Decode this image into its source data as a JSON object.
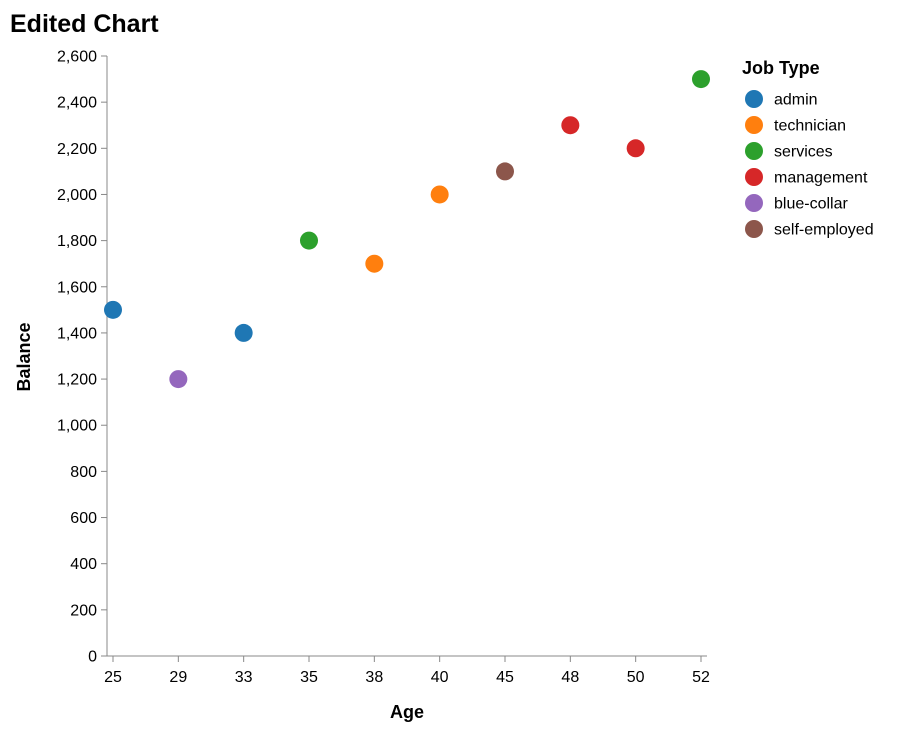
{
  "chart_data": {
    "type": "scatter",
    "title": "Edited Chart",
    "xlabel": "Age",
    "ylabel": "Balance",
    "x_ticks": [
      "25",
      "29",
      "33",
      "35",
      "38",
      "40",
      "45",
      "48",
      "50",
      "52"
    ],
    "y_ticks": [
      0,
      200,
      400,
      600,
      800,
      1000,
      1200,
      1400,
      1600,
      1800,
      2000,
      2200,
      2400,
      2600
    ],
    "ylim": [
      0,
      2600
    ],
    "grid": false,
    "legend": {
      "title": "Job Type",
      "placement": "right",
      "entries": [
        {
          "name": "admin",
          "color": "#1f77b4"
        },
        {
          "name": "technician",
          "color": "#ff7f0e"
        },
        {
          "name": "services",
          "color": "#2ca02c"
        },
        {
          "name": "management",
          "color": "#d62728"
        },
        {
          "name": "blue-collar",
          "color": "#9467bd"
        },
        {
          "name": "self-employed",
          "color": "#8c564b"
        }
      ]
    },
    "points": [
      {
        "x": "25",
        "y": 1500,
        "job": "admin"
      },
      {
        "x": "29",
        "y": 1200,
        "job": "blue-collar"
      },
      {
        "x": "33",
        "y": 1400,
        "job": "admin"
      },
      {
        "x": "35",
        "y": 1800,
        "job": "services"
      },
      {
        "x": "38",
        "y": 1700,
        "job": "technician"
      },
      {
        "x": "40",
        "y": 2000,
        "job": "technician"
      },
      {
        "x": "45",
        "y": 2100,
        "job": "self-employed"
      },
      {
        "x": "48",
        "y": 2300,
        "job": "management"
      },
      {
        "x": "50",
        "y": 2200,
        "job": "management"
      },
      {
        "x": "52",
        "y": 2500,
        "job": "services"
      }
    ]
  }
}
